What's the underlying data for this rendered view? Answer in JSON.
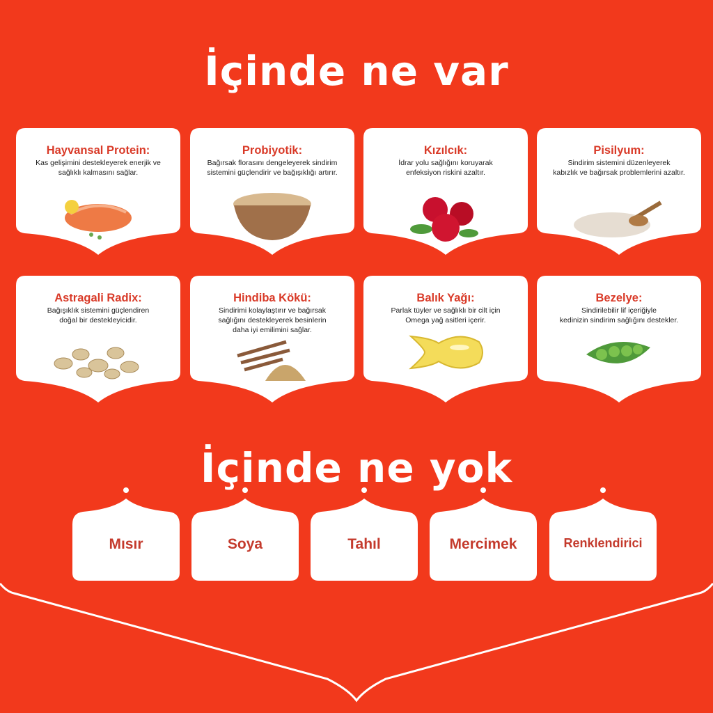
{
  "colors": {
    "background": "#f2391c",
    "card": "#ffffff",
    "heading": "#d93a28",
    "text": "#222222"
  },
  "section_have": {
    "title": "İçinde ne var",
    "items": [
      {
        "name": "Hayvansal Protein:",
        "desc": "Kas gelişimini destekleyerek enerjik ve\nsağlıklı kalmasını sağlar.",
        "image": "salmon-image"
      },
      {
        "name": "Probiyotik:",
        "desc": "Bağırsak florasını dengeleyerek sindirim\nsistemini güçlendirir ve bağışıklığı artırır.",
        "image": "powder-bowl-image"
      },
      {
        "name": "Kızılcık:",
        "desc": "İdrar yolu sağlığını koruyarak\nenfeksiyon riskini azaltır.",
        "image": "cranberry-image"
      },
      {
        "name": "Pisilyum:",
        "desc": "Sindirim sistemini düzenleyerek\nkabızlık ve bağırsak problemlerini azaltır.",
        "image": "psyllium-image"
      },
      {
        "name": "Astragali Radix:",
        "desc": "Bağışıklık sistemini güçlendiren\ndoğal bir destekleyicidir.",
        "image": "root-slices-image"
      },
      {
        "name": "Hindiba Kökü:",
        "desc": "Sindirimi kolaylaştırır ve bağırsak\nsağlığını destekleyerek besinlerin\ndaha iyi emilimini sağlar.",
        "image": "chicory-root-image"
      },
      {
        "name": "Balık Yağı:",
        "desc": "Parlak tüyler ve sağlıklı bir cilt için\nOmega yağ asitleri içerir.",
        "image": "fish-oil-capsule-image"
      },
      {
        "name": "Bezelye:",
        "desc": "Sindirilebilir lif içeriğiyle\nkedinizin sindirim sağlığını destekler.",
        "image": "peas-image"
      }
    ]
  },
  "section_not": {
    "title": "İçinde ne yok",
    "items": [
      "Mısır",
      "Soya",
      "Tahıl",
      "Mercimek",
      "Renklendirici"
    ]
  }
}
